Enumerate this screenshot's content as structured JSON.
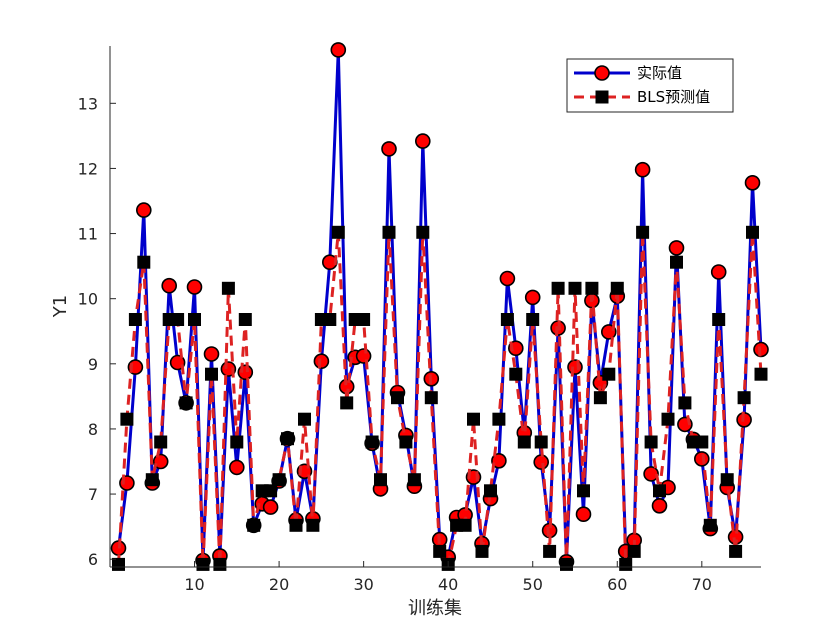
{
  "chart_data": {
    "type": "line",
    "xlabel": "训练集",
    "ylabel": "Y1",
    "xlim": [
      0,
      77
    ],
    "ylim": [
      5.88,
      13.88
    ],
    "xticks": [
      10,
      20,
      30,
      40,
      50,
      60,
      70
    ],
    "yticks": [
      6,
      7,
      8,
      9,
      10,
      11,
      12,
      13
    ],
    "grid": false,
    "legend_position": "top-right",
    "series": [
      {
        "name": "实际值",
        "style": "solid-circle",
        "line_color": "#0000cc",
        "marker_fill": "#ff0000",
        "marker_edge": "#000000",
        "x": [
          1,
          2,
          3,
          4,
          5,
          6,
          7,
          8,
          9,
          10,
          11,
          12,
          13,
          14,
          15,
          16,
          17,
          18,
          19,
          20,
          21,
          22,
          23,
          24,
          25,
          26,
          27,
          28,
          29,
          30,
          31,
          32,
          33,
          34,
          35,
          36,
          37,
          38,
          39,
          40,
          41,
          42,
          43,
          44,
          45,
          46,
          47,
          48,
          49,
          50,
          51,
          52,
          53,
          54,
          55,
          56,
          57,
          58,
          59,
          60,
          61,
          62,
          63,
          64,
          65,
          66,
          67,
          68,
          69,
          70,
          71,
          72,
          73,
          74,
          75,
          76,
          77
        ],
        "values": [
          6.17,
          7.17,
          8.95,
          11.36,
          7.17,
          7.5,
          10.2,
          9.02,
          8.4,
          10.18,
          5.98,
          9.15,
          6.05,
          8.92,
          7.41,
          8.87,
          6.52,
          6.85,
          6.8,
          7.2,
          7.85,
          6.6,
          7.35,
          6.62,
          9.04,
          10.56,
          13.82,
          8.65,
          9.1,
          9.12,
          7.78,
          7.08,
          12.3,
          8.56,
          7.9,
          7.12,
          12.42,
          8.77,
          6.3,
          6.03,
          6.64,
          6.68,
          7.26,
          6.24,
          6.93,
          7.51,
          10.31,
          9.24,
          7.94,
          10.02,
          7.49,
          6.44,
          9.55,
          5.96,
          8.95,
          6.69,
          9.97,
          8.71,
          9.49,
          10.04,
          6.12,
          6.29,
          11.98,
          7.31,
          6.82,
          7.1,
          10.78,
          8.07,
          7.84,
          7.54,
          6.47,
          10.41,
          7.1,
          6.34,
          8.14,
          11.78,
          9.22
        ]
      },
      {
        "name": "BLS预测值",
        "style": "dashed-square",
        "line_color": "#dd2222",
        "marker_fill": "#000000",
        "marker_edge": "#000000",
        "x": [
          1,
          2,
          3,
          4,
          5,
          6,
          7,
          8,
          9,
          10,
          11,
          12,
          13,
          14,
          15,
          16,
          17,
          18,
          19,
          20,
          21,
          22,
          23,
          24,
          25,
          26,
          27,
          28,
          29,
          30,
          31,
          32,
          33,
          34,
          35,
          36,
          37,
          38,
          39,
          40,
          41,
          42,
          43,
          44,
          45,
          46,
          47,
          48,
          49,
          50,
          51,
          52,
          53,
          54,
          55,
          56,
          57,
          58,
          59,
          60,
          61,
          62,
          63,
          64,
          65,
          66,
          67,
          68,
          69,
          70,
          71,
          72,
          73,
          74,
          75,
          76,
          77
        ],
        "values": [
          5.92,
          8.15,
          9.68,
          10.56,
          7.22,
          7.8,
          9.68,
          9.68,
          8.4,
          9.68,
          5.92,
          8.84,
          5.92,
          10.16,
          7.8,
          9.68,
          6.52,
          7.05,
          7.05,
          7.22,
          7.85,
          6.52,
          8.15,
          6.52,
          9.68,
          9.68,
          11.02,
          8.4,
          9.68,
          9.68,
          7.8,
          7.22,
          11.02,
          8.48,
          7.8,
          7.22,
          11.02,
          8.48,
          6.12,
          5.92,
          6.52,
          6.52,
          8.15,
          6.12,
          7.05,
          8.15,
          9.68,
          8.84,
          7.8,
          9.68,
          7.8,
          6.12,
          10.16,
          5.92,
          10.16,
          7.05,
          10.16,
          8.48,
          8.84,
          10.16,
          5.92,
          6.12,
          11.02,
          7.8,
          7.05,
          8.15,
          10.56,
          8.4,
          7.8,
          7.8,
          6.52,
          9.68,
          7.22,
          6.12,
          8.48,
          11.02,
          8.84
        ]
      }
    ]
  }
}
